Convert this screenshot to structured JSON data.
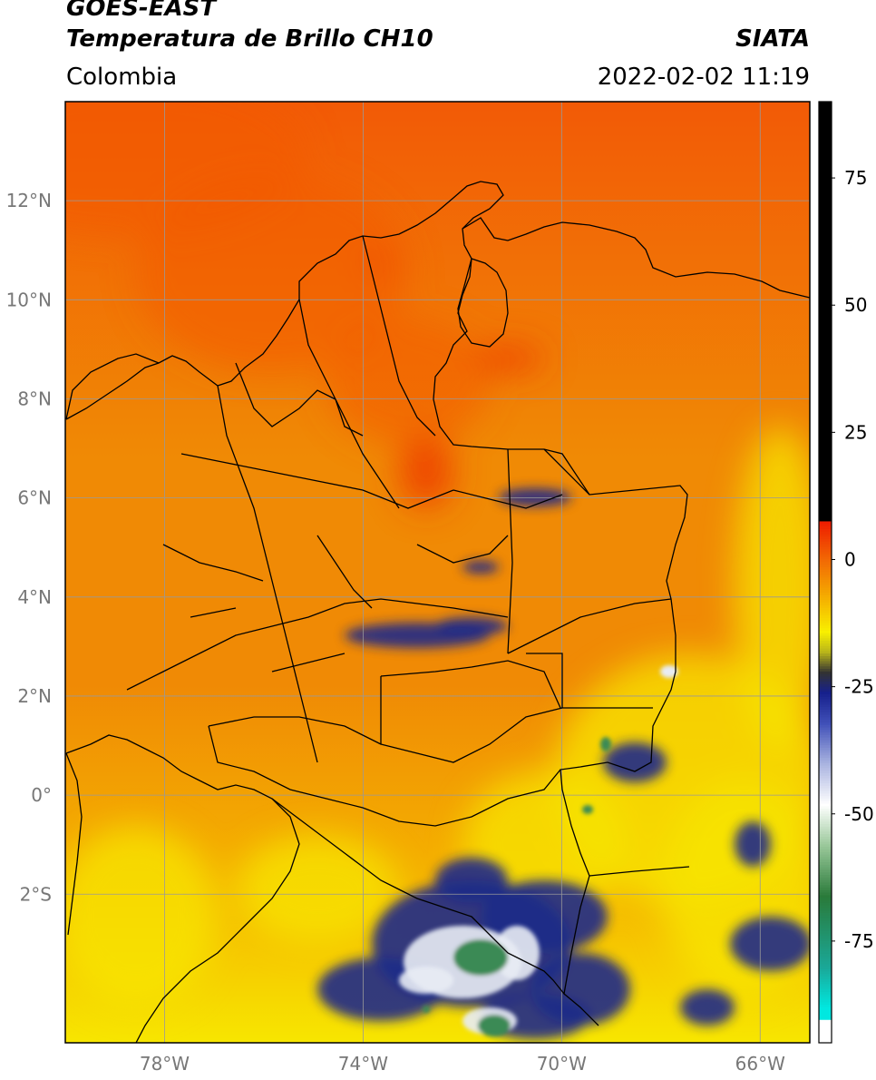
{
  "header": {
    "satellite": "GOES-EAST",
    "product": "Temperatura de Brillo CH10",
    "region": "Colombia",
    "organization": "SIATA",
    "timestamp": "2022-02-02 11:19"
  },
  "map": {
    "lon_range": [
      -80.0,
      -65.0
    ],
    "lat_range": [
      -5.0,
      14.0
    ],
    "lon_ticks": [
      {
        "value": -78,
        "label": "78°W"
      },
      {
        "value": -74,
        "label": "74°W"
      },
      {
        "value": -70,
        "label": "70°W"
      },
      {
        "value": -66,
        "label": "66°W"
      }
    ],
    "lat_ticks": [
      {
        "value": 12,
        "label": "12°N"
      },
      {
        "value": 10,
        "label": "10°N"
      },
      {
        "value": 8,
        "label": "8°N"
      },
      {
        "value": 6,
        "label": "6°N"
      },
      {
        "value": 4,
        "label": "4°N"
      },
      {
        "value": 2,
        "label": "2°N"
      },
      {
        "value": 0,
        "label": "0°"
      },
      {
        "value": -2,
        "label": "2°S"
      }
    ],
    "gridlines": true,
    "colors": {
      "warm_orange": "#f08a05",
      "hot_red_orange": "#f25a06",
      "yellow": "#f7e600",
      "cold_blue": "#1e2a88",
      "cold_white": "#e8ecf4",
      "cold_green": "#3a8a55",
      "border": "#000000",
      "grid": "#999999"
    }
  },
  "colorbar": {
    "range": [
      -95,
      90
    ],
    "ticks": [
      {
        "value": 75,
        "label": "75"
      },
      {
        "value": 50,
        "label": "50"
      },
      {
        "value": 25,
        "label": "25"
      },
      {
        "value": 0,
        "label": "0"
      },
      {
        "value": -25,
        "label": "-25"
      },
      {
        "value": -50,
        "label": "-50"
      },
      {
        "value": -75,
        "label": "-75"
      }
    ],
    "stops": [
      {
        "value": 90,
        "color": "#000000"
      },
      {
        "value": 8,
        "color": "#000000"
      },
      {
        "value": 7.9,
        "color": "#ee1a00"
      },
      {
        "value": 0,
        "color": "#f26a04"
      },
      {
        "value": -8,
        "color": "#f5b500"
      },
      {
        "value": -14,
        "color": "#f8f000"
      },
      {
        "value": -18,
        "color": "#b8b41a"
      },
      {
        "value": -22,
        "color": "#333333"
      },
      {
        "value": -26,
        "color": "#16208c"
      },
      {
        "value": -32,
        "color": "#4050b8"
      },
      {
        "value": -40,
        "color": "#aab4e0"
      },
      {
        "value": -48,
        "color": "#ffffff"
      },
      {
        "value": -56,
        "color": "#9ac89a"
      },
      {
        "value": -66,
        "color": "#2a7a3a"
      },
      {
        "value": -80,
        "color": "#1aa898"
      },
      {
        "value": -88,
        "color": "#00e8e0"
      },
      {
        "value": -90,
        "color": "#00e8e0"
      },
      {
        "value": -90.1,
        "color": "#ffffff"
      },
      {
        "value": -95,
        "color": "#ffffff"
      }
    ]
  }
}
